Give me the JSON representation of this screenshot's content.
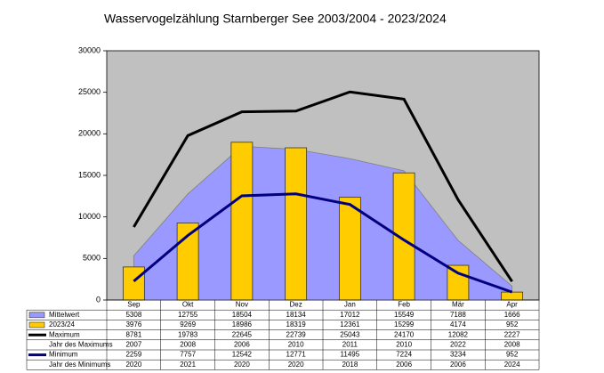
{
  "chart_data": {
    "type": "combo",
    "title": "Wasservogelzählung Starnberger See 2003/2004 - 2023/2024",
    "categories": [
      "Sep",
      "Okt",
      "Nov",
      "Dez",
      "Jan",
      "Feb",
      "Mär",
      "Apr"
    ],
    "series": [
      {
        "name": "Mittelwert",
        "type": "area",
        "color": "#9999ff",
        "values": [
          5308,
          12755,
          18504,
          18134,
          17012,
          15549,
          7188,
          1666
        ]
      },
      {
        "name": "2023/24",
        "type": "bar",
        "color": "#ffcc00",
        "values": [
          3976,
          9269,
          18986,
          18319,
          12361,
          15299,
          4174,
          952
        ]
      },
      {
        "name": "Maximum",
        "type": "line",
        "color": "#000000",
        "values": [
          8781,
          19783,
          22645,
          22739,
          25043,
          24170,
          12082,
          2227
        ]
      },
      {
        "name": "Jahr des Maximums",
        "type": "table",
        "values": [
          2007,
          2008,
          2006,
          2010,
          2011,
          2010,
          2022,
          2008
        ]
      },
      {
        "name": "Minimum",
        "type": "line",
        "color": "#000080",
        "values": [
          2259,
          7757,
          12542,
          12771,
          11495,
          7224,
          3234,
          952
        ]
      },
      {
        "name": "Jahr des Minimums",
        "type": "table",
        "values": [
          2020,
          2021,
          2020,
          2020,
          2018,
          2006,
          2006,
          2024
        ]
      }
    ],
    "ylim": [
      0,
      30000
    ],
    "yticks": [
      0,
      5000,
      10000,
      15000,
      20000,
      25000,
      30000
    ],
    "grid": false
  }
}
